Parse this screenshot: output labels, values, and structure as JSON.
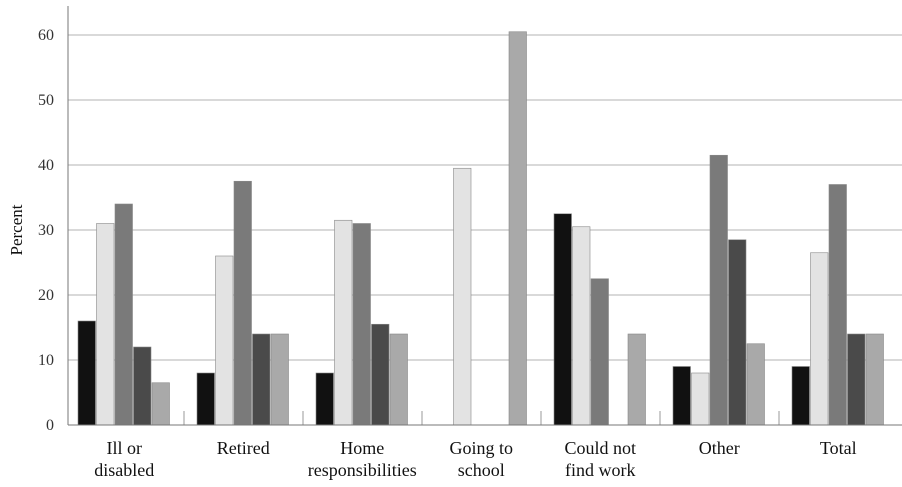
{
  "chart_data": {
    "type": "bar",
    "title": "",
    "xlabel": "",
    "ylabel": "Percent",
    "ylim": [
      0,
      65
    ],
    "yticks": [
      0,
      10,
      20,
      30,
      40,
      50,
      60
    ],
    "grid": true,
    "legend": "none",
    "categories": [
      [
        "Ill or",
        "disabled"
      ],
      [
        "Retired"
      ],
      [
        "Home",
        "responsibilities"
      ],
      [
        "Going to",
        "school"
      ],
      [
        "Could not",
        "find work"
      ],
      [
        "Other"
      ],
      [
        "Total"
      ]
    ],
    "series": [
      {
        "color": "#111111",
        "values": [
          16,
          8,
          8,
          0,
          32.5,
          9,
          9
        ]
      },
      {
        "color": "#e3e3e3",
        "values": [
          31,
          26,
          31.5,
          39.5,
          30.5,
          8,
          26.5
        ]
      },
      {
        "color": "#7a7a7a",
        "values": [
          34,
          37.5,
          31,
          0,
          22.5,
          41.5,
          37
        ]
      },
      {
        "color": "#4a4a4a",
        "values": [
          12,
          14,
          15.5,
          0,
          0,
          28.5,
          14
        ]
      },
      {
        "color": "#a9a9a9",
        "values": [
          6.5,
          14,
          14,
          60.5,
          14,
          12.5,
          14
        ]
      }
    ]
  }
}
